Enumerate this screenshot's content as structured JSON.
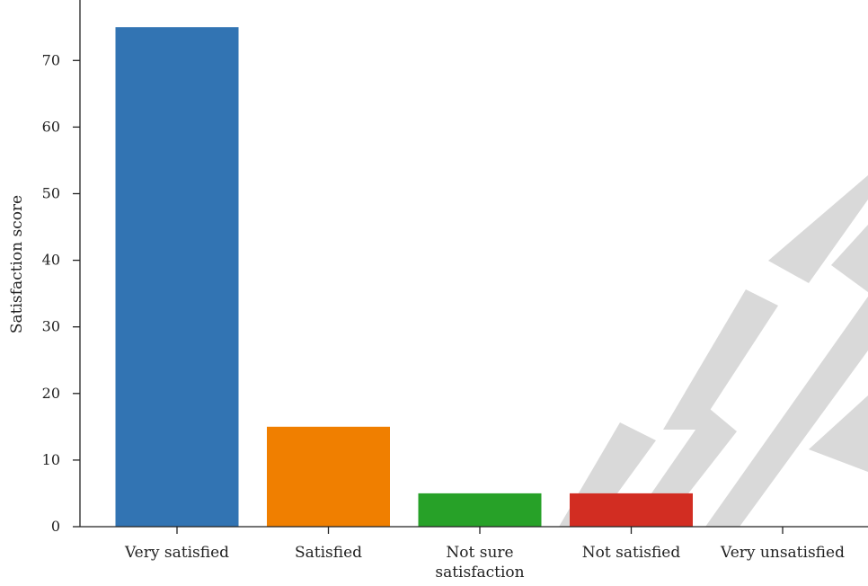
{
  "chart_data": {
    "type": "bar",
    "categories": [
      "Very satisfied",
      "Satisfied",
      "Not sure satisfaction",
      "Not satisfied",
      "Very unsatisfied"
    ],
    "category_label_lines": [
      [
        "Very satisfied"
      ],
      [
        "Satisfied"
      ],
      [
        "Not sure",
        "satisfaction"
      ],
      [
        "Not satisfied"
      ],
      [
        "Very unsatisfied"
      ]
    ],
    "values": [
      75,
      15,
      5,
      5,
      0
    ],
    "colors": [
      "#3274b3",
      "#f07f00",
      "#27a128",
      "#d22d22",
      "#7f7f7f"
    ],
    "xlabel": "",
    "ylabel": "Satisfaction score",
    "ylim": [
      0,
      78
    ],
    "yticks": [
      0,
      10,
      20,
      30,
      40,
      50,
      60,
      70
    ],
    "grid": false,
    "legend": "none"
  },
  "watermark": {
    "text": "ACCEPTED",
    "color": "#d9d9d9"
  }
}
